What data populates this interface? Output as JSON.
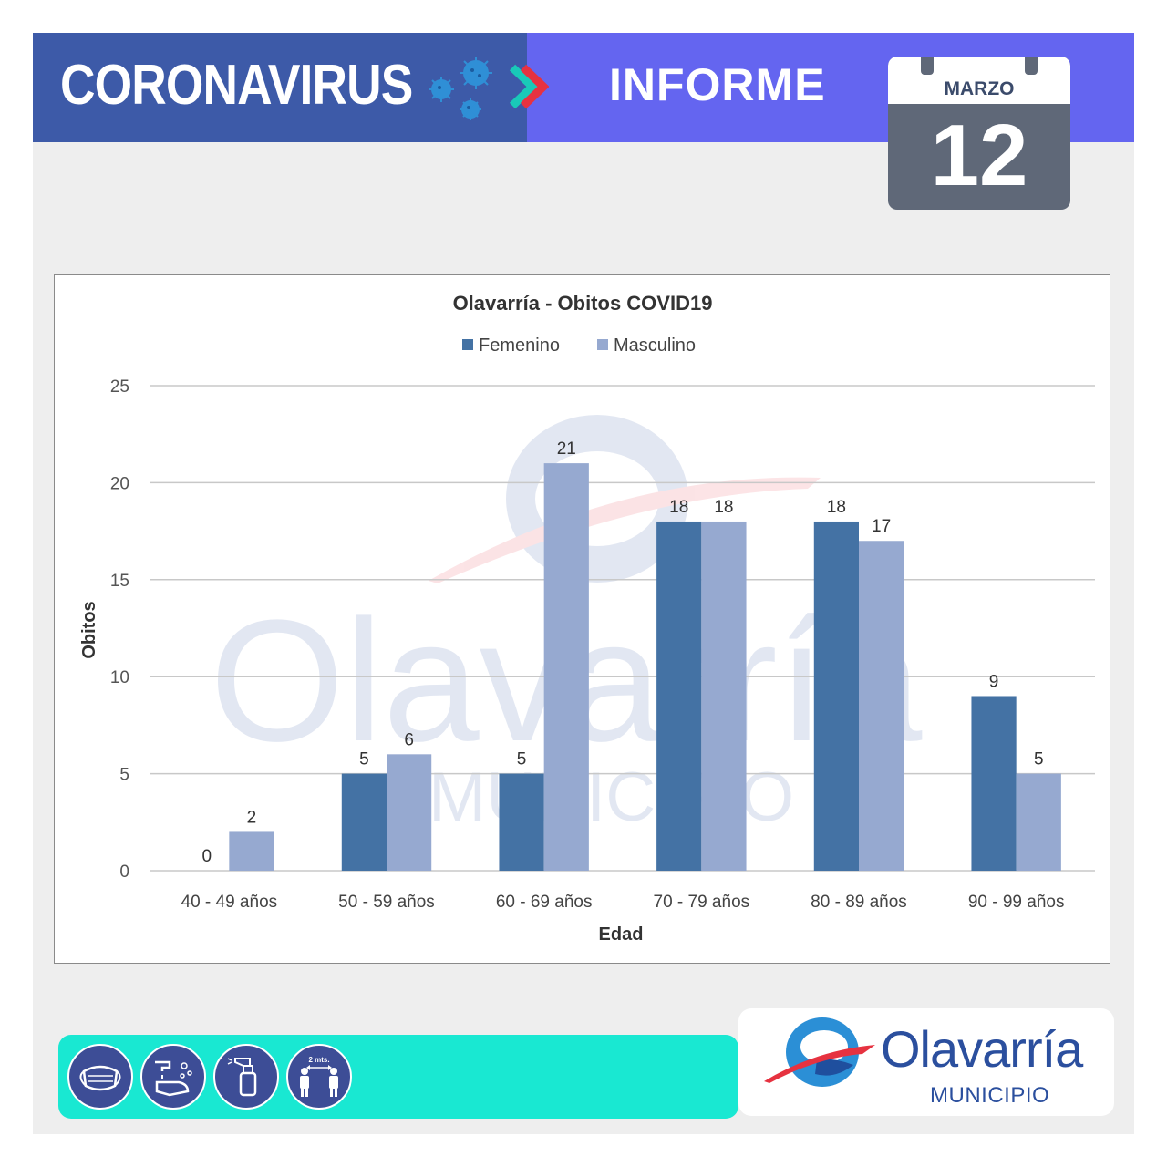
{
  "header": {
    "title_left": "CORONAVIRUS",
    "title_right": "INFORME",
    "calendar": {
      "month": "MARZO",
      "day": "12"
    },
    "colors": {
      "left_band": "#3d5aa8",
      "right_band": "#6465f0",
      "calendar": "#5f6878"
    },
    "icons": [
      "virus-icon",
      "chevron-right-icon",
      "calendar-icon"
    ]
  },
  "chart_data": {
    "type": "bar",
    "title": "Olavarría - Obitos COVID19",
    "xlabel": "Edad",
    "ylabel": "Obitos",
    "ylim": [
      0,
      25
    ],
    "yticks": [
      0,
      5,
      10,
      15,
      20,
      25
    ],
    "grid": true,
    "legend_position": "top",
    "categories": [
      "40 - 49 años",
      "50 - 59 años",
      "60 - 69 años",
      "70 - 79 años",
      "80 - 89 años",
      "90 - 99 años"
    ],
    "series": [
      {
        "name": "Femenino",
        "color": "#4472a4",
        "values": [
          0,
          5,
          5,
          18,
          18,
          9
        ]
      },
      {
        "name": "Masculino",
        "color": "#96a9d0",
        "values": [
          2,
          6,
          21,
          18,
          17,
          5
        ]
      }
    ]
  },
  "watermark": {
    "word": "Olavarría",
    "sub": "MUNICIPIO"
  },
  "footer": {
    "care_icons": [
      "face-mask-icon",
      "hand-washing-icon",
      "sanitizer-spray-icon",
      "social-distance-icon"
    ],
    "distance_label": "2 mts.",
    "bar_color": "#19e8d2",
    "logo": {
      "word": "Olavarría",
      "sub": "MUNICIPIO"
    }
  }
}
